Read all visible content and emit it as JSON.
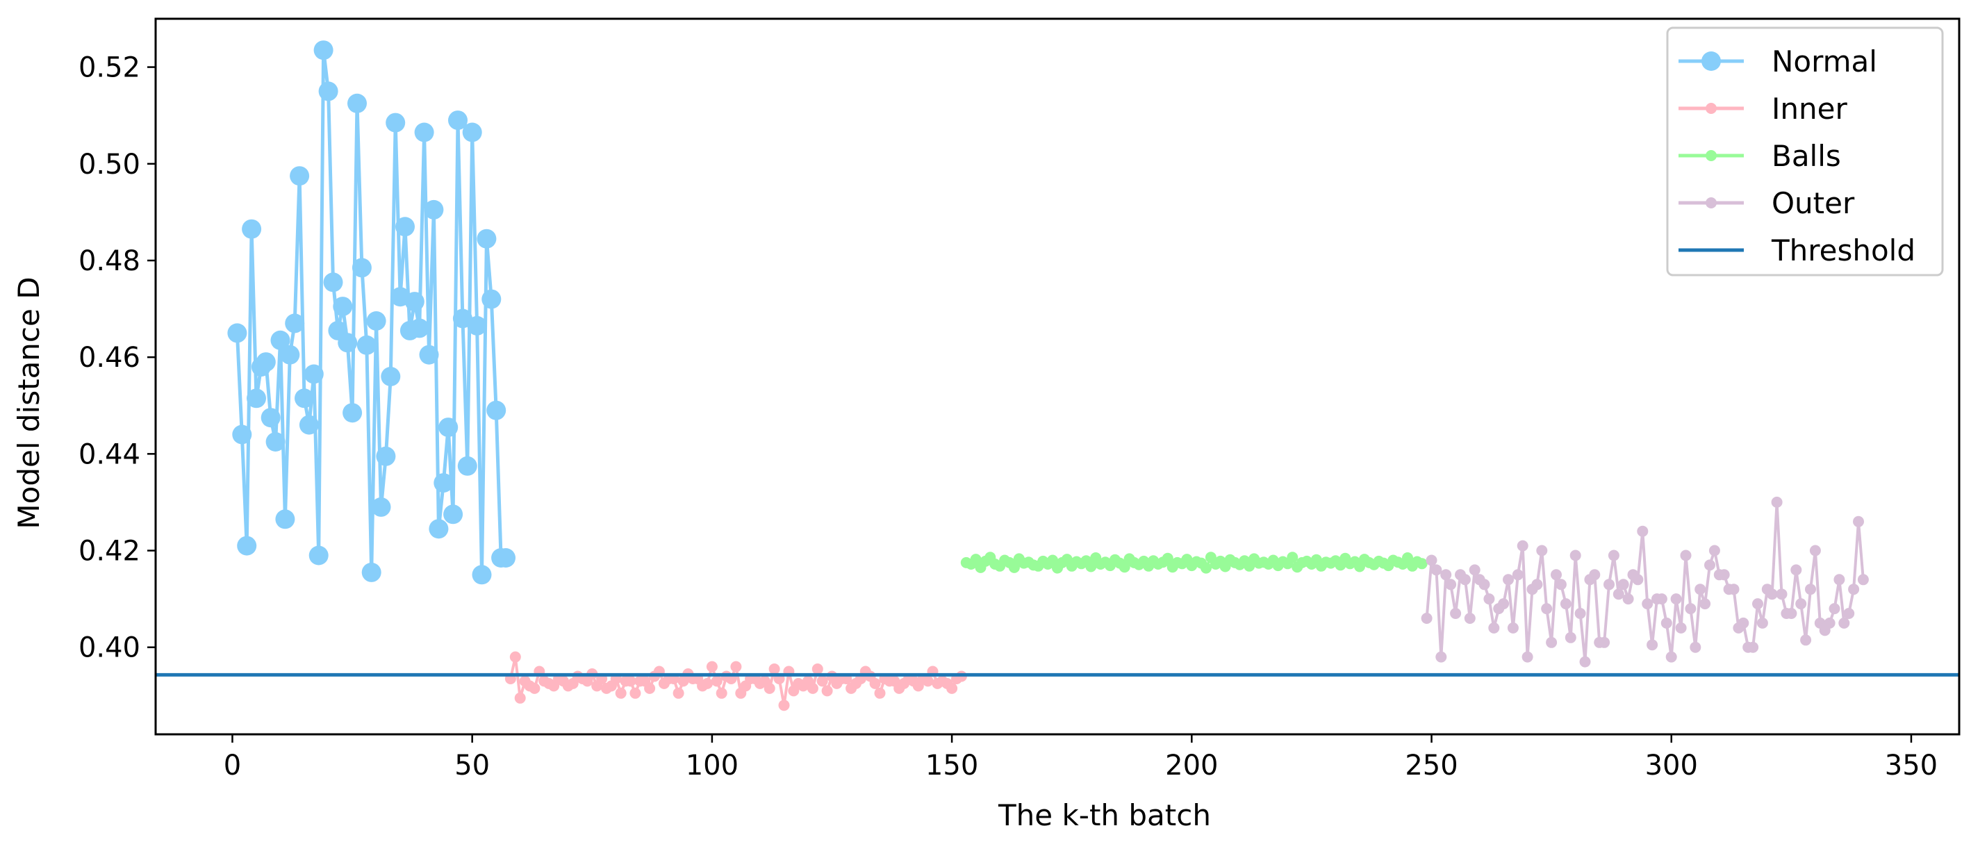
{
  "chart_data": {
    "type": "line",
    "title": "",
    "xlabel": "The k-th batch",
    "ylabel": "Model distance D",
    "xlim": [
      -16,
      360
    ],
    "ylim": [
      0.382,
      0.53
    ],
    "xticks": [
      0,
      50,
      100,
      150,
      200,
      250,
      300,
      350
    ],
    "yticks": [
      0.4,
      0.42,
      0.44,
      0.46,
      0.48,
      0.5,
      0.52
    ],
    "ytick_labels": [
      "0.40",
      "0.42",
      "0.44",
      "0.46",
      "0.48",
      "0.50",
      "0.52"
    ],
    "grid": false,
    "legend_position": "top-right",
    "series": [
      {
        "name": "Normal",
        "color": "#87CEFA",
        "marker_size": "large",
        "x": [
          1,
          2,
          3,
          4,
          5,
          6,
          7,
          8,
          9,
          10,
          11,
          12,
          13,
          14,
          15,
          16,
          17,
          18,
          19,
          20,
          21,
          22,
          23,
          24,
          25,
          26,
          27,
          28,
          29,
          30,
          31,
          32,
          33,
          34,
          35,
          36,
          37,
          38,
          39,
          40,
          41,
          42,
          43,
          44,
          45,
          46,
          47,
          48,
          49,
          50,
          51,
          52,
          53,
          54,
          55,
          56,
          57
        ],
        "y": [
          0.465,
          0.444,
          0.421,
          0.4865,
          0.4515,
          0.458,
          0.459,
          0.4475,
          0.4425,
          0.4635,
          0.4265,
          0.4605,
          0.467,
          0.4975,
          0.4515,
          0.446,
          0.4565,
          0.419,
          0.5235,
          0.515,
          0.4755,
          0.4655,
          0.4705,
          0.463,
          0.4485,
          0.5125,
          0.4785,
          0.4625,
          0.4155,
          0.4675,
          0.429,
          0.4395,
          0.456,
          0.5085,
          0.4725,
          0.487,
          0.4655,
          0.4715,
          0.466,
          0.5065,
          0.4605,
          0.4905,
          0.4245,
          0.434,
          0.4455,
          0.4275,
          0.509,
          0.468,
          0.4375,
          0.5065,
          0.4665,
          0.415,
          0.4845,
          0.472,
          0.449,
          0.4185,
          0.4185
        ]
      },
      {
        "name": "Inner",
        "color": "#FFB6C1",
        "marker_size": "small",
        "x_start": 58,
        "y": [
          0.3935,
          0.398,
          0.3895,
          0.393,
          0.392,
          0.3915,
          0.395,
          0.393,
          0.3925,
          0.392,
          0.3935,
          0.393,
          0.392,
          0.3925,
          0.394,
          0.3935,
          0.393,
          0.3945,
          0.392,
          0.3935,
          0.3915,
          0.392,
          0.3935,
          0.3905,
          0.393,
          0.393,
          0.3905,
          0.393,
          0.393,
          0.3915,
          0.394,
          0.395,
          0.3925,
          0.3935,
          0.3935,
          0.3905,
          0.393,
          0.3945,
          0.3935,
          0.3935,
          0.392,
          0.3925,
          0.396,
          0.393,
          0.3905,
          0.394,
          0.3935,
          0.396,
          0.3905,
          0.392,
          0.3935,
          0.3935,
          0.3925,
          0.393,
          0.3915,
          0.3955,
          0.3935,
          0.388,
          0.395,
          0.391,
          0.3925,
          0.392,
          0.393,
          0.3915,
          0.3955,
          0.393,
          0.391,
          0.394,
          0.3925,
          0.3935,
          0.3935,
          0.3915,
          0.3925,
          0.3935,
          0.395,
          0.394,
          0.3925,
          0.3905,
          0.3935,
          0.393,
          0.393,
          0.3915,
          0.3925,
          0.3935,
          0.393,
          0.392,
          0.3935,
          0.393,
          0.395,
          0.3925,
          0.393,
          0.3925,
          0.3915,
          0.3935,
          0.394
        ]
      },
      {
        "name": "Balls",
        "color": "#98FB98",
        "marker_size": "small",
        "x_start": 153,
        "y": [
          0.4175,
          0.4172,
          0.4182,
          0.4165,
          0.4178,
          0.4186,
          0.4172,
          0.4168,
          0.418,
          0.4175,
          0.4165,
          0.4183,
          0.4174,
          0.4176,
          0.417,
          0.4168,
          0.4178,
          0.4172,
          0.418,
          0.4164,
          0.4175,
          0.4182,
          0.4168,
          0.4177,
          0.4173,
          0.4179,
          0.4167,
          0.4185,
          0.4172,
          0.4176,
          0.4169,
          0.4181,
          0.4174,
          0.4166,
          0.4183,
          0.4175,
          0.4171,
          0.4178,
          0.4168,
          0.4179,
          0.4172,
          0.4176,
          0.4184,
          0.4166,
          0.4175,
          0.4173,
          0.4182,
          0.4169,
          0.4177,
          0.4174,
          0.4164,
          0.4186,
          0.4172,
          0.4178,
          0.4167,
          0.4181,
          0.4175,
          0.4171,
          0.4179,
          0.4168,
          0.4183,
          0.4174,
          0.4176,
          0.4172,
          0.418,
          0.4169,
          0.4177,
          0.4173,
          0.4186,
          0.4166,
          0.4175,
          0.4178,
          0.4172,
          0.4181,
          0.4168,
          0.4176,
          0.4174,
          0.4179,
          0.417,
          0.4184,
          0.4173,
          0.4177,
          0.4167,
          0.4182,
          0.4175,
          0.4171,
          0.4178,
          0.4174,
          0.4169,
          0.418,
          0.4176,
          0.4172,
          0.4185,
          0.4168,
          0.4177,
          0.4173
        ]
      },
      {
        "name": "Outer",
        "color": "#D8BFD8",
        "marker_size": "small",
        "x_start": 249,
        "y": [
          0.406,
          0.418,
          0.416,
          0.398,
          0.415,
          0.413,
          0.407,
          0.415,
          0.414,
          0.406,
          0.416,
          0.414,
          0.413,
          0.41,
          0.404,
          0.408,
          0.409,
          0.414,
          0.404,
          0.415,
          0.421,
          0.398,
          0.412,
          0.413,
          0.42,
          0.408,
          0.401,
          0.415,
          0.413,
          0.409,
          0.402,
          0.419,
          0.407,
          0.397,
          0.414,
          0.415,
          0.401,
          0.401,
          0.413,
          0.419,
          0.411,
          0.413,
          0.41,
          0.415,
          0.414,
          0.424,
          0.409,
          0.4005,
          0.41,
          0.41,
          0.405,
          0.398,
          0.41,
          0.404,
          0.419,
          0.408,
          0.4,
          0.412,
          0.409,
          0.417,
          0.42,
          0.415,
          0.415,
          0.412,
          0.412,
          0.404,
          0.405,
          0.4,
          0.4,
          0.409,
          0.405,
          0.412,
          0.411,
          0.43,
          0.411,
          0.407,
          0.407,
          0.416,
          0.409,
          0.4015,
          0.412,
          0.42,
          0.405,
          0.4035,
          0.405,
          0.408,
          0.414,
          0.405,
          0.407,
          0.412,
          0.426,
          0.414
        ]
      },
      {
        "name": "Threshold",
        "color": "#1F77B4",
        "type": "hline",
        "y": 0.3943
      }
    ]
  }
}
